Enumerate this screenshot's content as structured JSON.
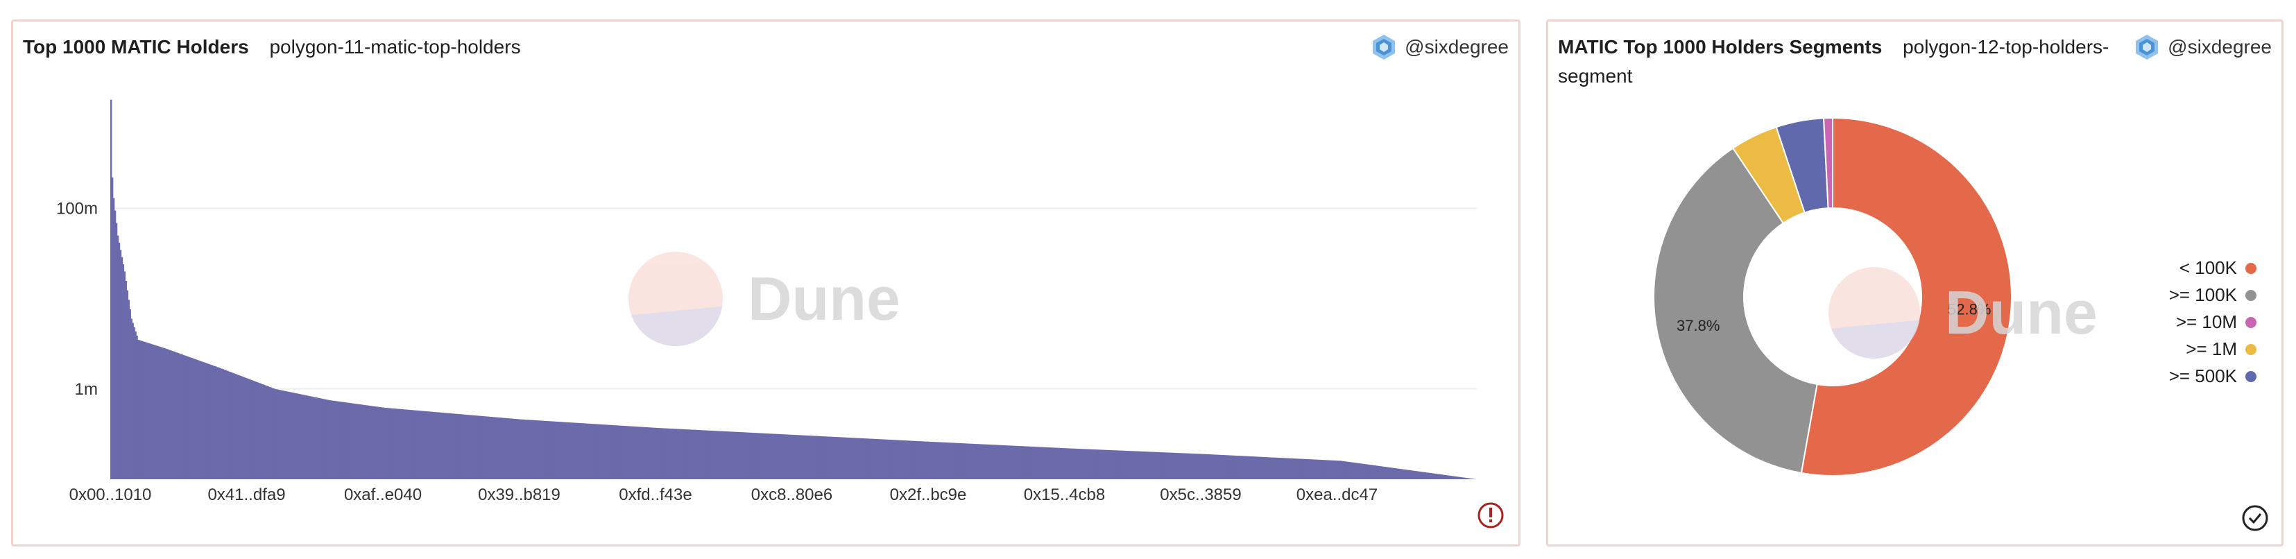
{
  "panels": {
    "left": {
      "title": "Top 1000 MATIC Holders",
      "query": "polygon-11-matic-top-holders",
      "author": "@sixdegree",
      "watermark": "Dune"
    },
    "right": {
      "title": "MATIC Top 1000 Holders Segments",
      "query": "polygon-12-top-holders-segment",
      "query_line1": "polygon-12-top-holders-",
      "query_line2": "segment",
      "author": "@sixdegree",
      "watermark": "Dune"
    }
  },
  "colors": {
    "bar": "#6b6aaa",
    "segment_lt100k": "#e4694a",
    "segment_ge100k": "#929292",
    "segment_ge10m": "#c966b4",
    "segment_ge1m": "#ebbb44",
    "segment_ge500k": "#6169ad",
    "border": "#f0d3cc"
  },
  "chart_data": [
    {
      "type": "bar",
      "title": "Top 1000 MATIC Holders",
      "scale": "log",
      "ylim": [
        100000,
        2000000000
      ],
      "y_ticks": [
        {
          "label": "100m",
          "value": 100000000
        },
        {
          "label": "1m",
          "value": 1000000
        }
      ],
      "x_tick_labels": [
        "0x00..1010",
        "0x41..dfa9",
        "0xaf..e040",
        "0x39..b819",
        "0xfd..f43e",
        "0xc8..80e6",
        "0x2f..bc9e",
        "0x15..4cb8",
        "0x5c..3859",
        "0xea..dc47"
      ],
      "n_holders": 1000,
      "approx_values_at_ranks": [
        [
          0,
          1600000000
        ],
        [
          1,
          220000000
        ],
        [
          2,
          130000000
        ],
        [
          5,
          50000000
        ],
        [
          10,
          20000000
        ],
        [
          15,
          6000000
        ],
        [
          20,
          3500000
        ],
        [
          40,
          2800000
        ],
        [
          80,
          1700000
        ],
        [
          120,
          1000000
        ],
        [
          160,
          750000
        ],
        [
          200,
          620000
        ],
        [
          300,
          460000
        ],
        [
          400,
          370000
        ],
        [
          500,
          310000
        ],
        [
          600,
          260000
        ],
        [
          700,
          220000
        ],
        [
          800,
          190000
        ],
        [
          900,
          160000
        ],
        [
          999,
          100000
        ]
      ]
    },
    {
      "type": "pie",
      "title": "MATIC Top 1000 Holders Segments",
      "donut": true,
      "slices": [
        {
          "label": "< 100K",
          "value": 52.8,
          "color_key": "segment_lt100k",
          "show_label": true
        },
        {
          "label": ">= 100K",
          "value": 37.8,
          "color_key": "segment_ge100k",
          "show_label": true
        },
        {
          "label": ">= 1M",
          "value": 4.3,
          "color_key": "segment_ge1m",
          "show_label": false
        },
        {
          "label": ">= 500K",
          "value": 4.3,
          "color_key": "segment_ge500k",
          "show_label": false
        },
        {
          "label": ">= 10M",
          "value": 0.8,
          "color_key": "segment_ge10m",
          "show_label": false
        }
      ],
      "slice_labels": [
        "52.8%",
        "37.8%"
      ],
      "legend_order": [
        "< 100K",
        ">= 100K",
        ">= 10M",
        ">= 1M",
        ">= 500K"
      ],
      "legend_position": "right"
    }
  ]
}
